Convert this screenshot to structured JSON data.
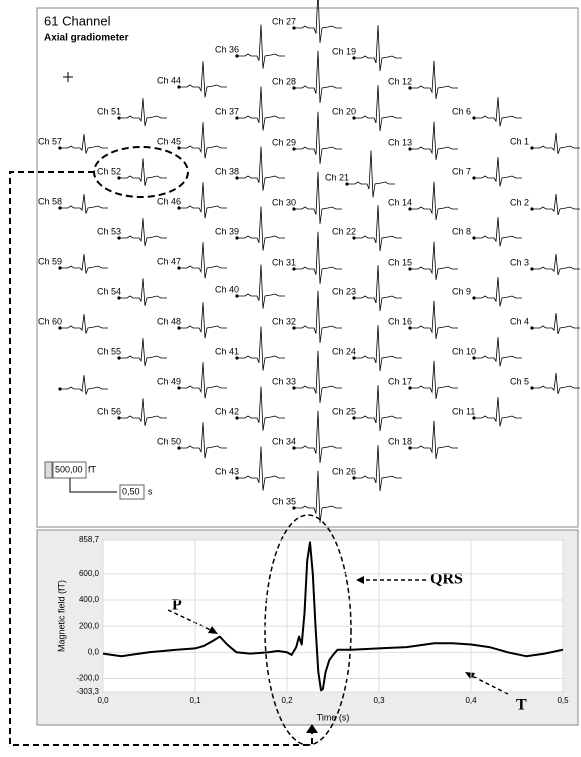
{
  "panel": {
    "title": "61 Channel",
    "subtitle": "Axial gradiometer",
    "channels": [
      "Ch 27",
      "Ch 36",
      "Ch 19",
      "Ch 44",
      "Ch 28",
      "Ch 12",
      "Ch 51",
      "Ch 37",
      "Ch 20",
      "Ch 6",
      "Ch 57",
      "Ch 45",
      "Ch 29",
      "Ch 13",
      "Ch 1",
      "Ch 52",
      "Ch 38",
      "Ch 21",
      "Ch 7",
      "Ch 58",
      "Ch 46",
      "Ch 30",
      "Ch 14",
      "Ch 2",
      "Ch 53",
      "Ch 39",
      "Ch 22",
      "Ch 8",
      "Ch 59",
      "Ch 47",
      "Ch 31",
      "Ch 15",
      "Ch 3",
      "Ch 54",
      "Ch 40",
      "Ch 23",
      "Ch 9",
      "Ch 60",
      "Ch 48",
      "Ch 32",
      "Ch 16",
      "Ch 4",
      "Ch 55",
      "Ch 41",
      "Ch 24",
      "Ch 10",
      null,
      "Ch 49",
      "Ch 33",
      "Ch 17",
      "Ch 5",
      "Ch 56",
      "Ch 42",
      "Ch 25",
      "Ch 11",
      "Ch 50",
      "Ch 34",
      "Ch 18",
      "Ch 43",
      "Ch 26",
      "Ch 35"
    ],
    "scale": {
      "amplitude": "500,00",
      "amplitude_unit": "fT",
      "time": "0,50",
      "time_unit": "s"
    }
  },
  "chart_data": {
    "type": "line",
    "ylabel": "Magnetic field (fT)",
    "xlabel": "Time (s)",
    "x": [
      0,
      0.02,
      0.05,
      0.08,
      0.1,
      0.11,
      0.12,
      0.127,
      0.135,
      0.145,
      0.16,
      0.18,
      0.19,
      0.2,
      0.205,
      0.21,
      0.213,
      0.216,
      0.219,
      0.222,
      0.225,
      0.228,
      0.231,
      0.234,
      0.237,
      0.239,
      0.242,
      0.246,
      0.25,
      0.255,
      0.27,
      0.3,
      0.33,
      0.36,
      0.38,
      0.4,
      0.42,
      0.44,
      0.46,
      0.48,
      0.5
    ],
    "values": [
      -10,
      -30,
      0,
      20,
      30,
      50,
      90,
      120,
      60,
      0,
      -10,
      0,
      10,
      0,
      -20,
      40,
      120,
      60,
      300,
      700,
      840,
      600,
      200,
      -150,
      -290,
      -280,
      -150,
      -60,
      -20,
      20,
      20,
      30,
      40,
      70,
      70,
      60,
      40,
      0,
      -30,
      -10,
      20
    ],
    "color": "#000000",
    "xlim": [
      0,
      0.5
    ],
    "xticks": [
      {
        "value": 0,
        "label": "0,0"
      },
      {
        "value": 0.1,
        "label": "0,1"
      },
      {
        "value": 0.2,
        "label": "0,2"
      },
      {
        "value": 0.3,
        "label": "0,3"
      },
      {
        "value": 0.4,
        "label": "0,4"
      },
      {
        "value": 0.5,
        "label": "0,5"
      }
    ],
    "ylim": [
      -303.3,
      858.7
    ],
    "yticks": [
      {
        "value": 858.7,
        "label": "858,7"
      },
      {
        "value": 600,
        "label": "600,0"
      },
      {
        "value": 400,
        "label": "400,0"
      },
      {
        "value": 200,
        "label": "200,0"
      },
      {
        "value": 0,
        "label": "0,0"
      },
      {
        "value": -200,
        "label": "-200,0"
      },
      {
        "value": -303.3,
        "label": "-303,3"
      }
    ],
    "grid": true,
    "annotations": [
      "P",
      "QRS",
      "T"
    ]
  }
}
